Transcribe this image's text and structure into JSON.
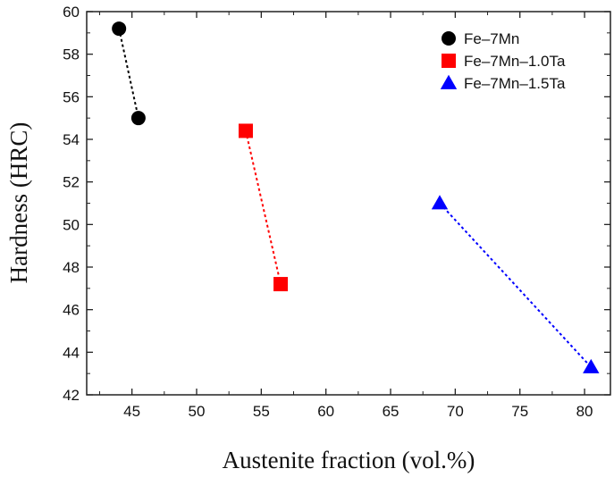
{
  "chart_data": {
    "type": "scatter",
    "title": "",
    "xlabel": "Austenite fraction (vol.%)",
    "ylabel": "Hardness (HRC)",
    "xlim": [
      41.5,
      82
    ],
    "ylim": [
      42,
      60
    ],
    "xticks": [
      45,
      50,
      55,
      60,
      65,
      70,
      75,
      80
    ],
    "yticks": [
      42,
      44,
      46,
      48,
      50,
      52,
      54,
      56,
      58,
      60
    ],
    "grid": false,
    "legend_position": "top-right",
    "series": [
      {
        "name": "Fe–7Mn",
        "marker": "circle",
        "color": "#000000",
        "line": "dotted",
        "x": [
          44.0,
          45.5
        ],
        "y": [
          59.2,
          55.0
        ]
      },
      {
        "name": "Fe–7Mn–1.0Ta",
        "marker": "square",
        "color": "#ff0000",
        "line": "dotted",
        "x": [
          53.8,
          56.5
        ],
        "y": [
          54.4,
          47.2
        ]
      },
      {
        "name": "Fe–7Mn–1.5Ta",
        "marker": "triangle",
        "color": "#0000ff",
        "line": "dotted",
        "x": [
          68.8,
          80.5
        ],
        "y": [
          51.0,
          43.3
        ]
      }
    ]
  }
}
